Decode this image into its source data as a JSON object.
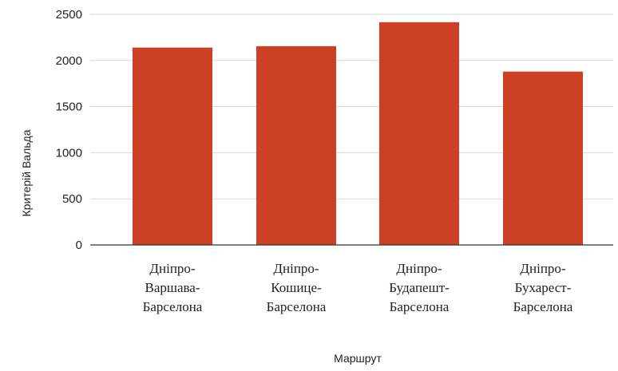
{
  "chart_data": {
    "type": "bar",
    "categories": [
      [
        "Дніпро-",
        "Варшава-",
        "Барселона"
      ],
      [
        "Дніпро-",
        "Кошице-",
        "Барселона"
      ],
      [
        "Дніпро-",
        "Будапешт-",
        "Барселона"
      ],
      [
        "Дніпро-",
        "Бухарест-",
        "Барселона"
      ]
    ],
    "values": [
      2140,
      2155,
      2415,
      1880
    ],
    "xlabel": "Маршрут",
    "ylabel": "Критерій Вальда",
    "ylim": [
      0,
      2500
    ],
    "yticks": [
      0,
      500,
      1000,
      1500,
      2000,
      2500
    ],
    "grid": true,
    "legend": "none",
    "bar_color": "#cc4125",
    "grid_color": "#d9d9d9",
    "axis_color": "#333333"
  }
}
